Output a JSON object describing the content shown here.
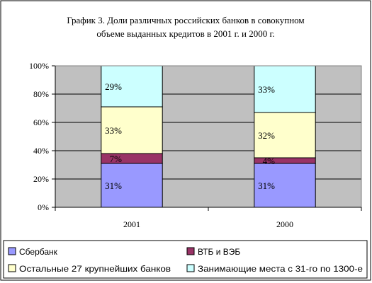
{
  "chart_data": {
    "type": "bar",
    "stacked": true,
    "title_lines": [
      "График 3. Доли различных российских банков в совокупном",
      "объеме выданных кредитов в 2001 г. и 2000 г."
    ],
    "categories": [
      "2001",
      "2000"
    ],
    "ylim": [
      0,
      100
    ],
    "y_ticks": [
      "0%",
      "20%",
      "40%",
      "60%",
      "80%",
      "100%"
    ],
    "grid": true,
    "legend_position": "bottom",
    "series": [
      {
        "name": "Сбербанк",
        "values": [
          31,
          31
        ],
        "labels": [
          "31%",
          "31%"
        ],
        "color": "#9999ff"
      },
      {
        "name": "ВТБ и ВЭБ",
        "values": [
          7,
          4
        ],
        "labels": [
          "7%",
          "4%"
        ],
        "color": "#993366"
      },
      {
        "name": "Остальные 27 крупнейших банков",
        "values": [
          33,
          32
        ],
        "labels": [
          "33%",
          "32%"
        ],
        "color": "#ffffcc"
      },
      {
        "name": "Занимающие места с 31-го по 1300-е",
        "values": [
          29,
          33
        ],
        "labels": [
          "29%",
          "33%"
        ],
        "color": "#ccffff"
      }
    ],
    "colors": {
      "plot_background": "#c0c0c0",
      "border": "#000000"
    }
  }
}
